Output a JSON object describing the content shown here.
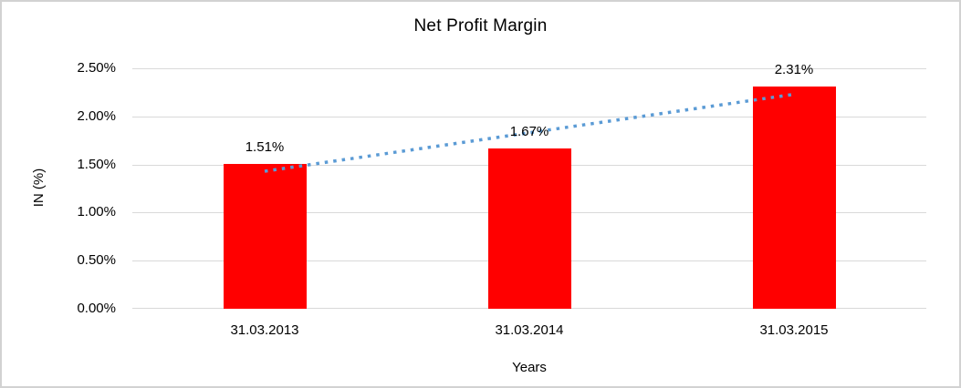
{
  "window": {
    "background": "#ffffff",
    "border_color": "#d2d2d2"
  },
  "chart_data": {
    "type": "bar",
    "title": "Net Profit Margin",
    "xlabel": "Years",
    "ylabel": "IN (%)",
    "categories": [
      "31.03.2013",
      "31.03.2014",
      "31.03.2015"
    ],
    "values": [
      1.51,
      1.67,
      2.31
    ],
    "data_labels": [
      "1.51%",
      "1.67%",
      "2.31%"
    ],
    "ylim": [
      0,
      2.5
    ],
    "ytick_values": [
      0,
      0.5,
      1.0,
      1.5,
      2.0,
      2.5
    ],
    "ytick_labels": [
      "0.00%",
      "0.50%",
      "1.00%",
      "1.50%",
      "2.00%",
      "2.50%"
    ],
    "grid": true,
    "legend": "none",
    "bar_color": "#ff0000",
    "gridline_color": "#d9d9d9",
    "text_color": "#000000",
    "trendline": {
      "style": "dotted",
      "color": "#5b9bd5",
      "start_value": 1.43,
      "end_value": 2.23
    }
  }
}
